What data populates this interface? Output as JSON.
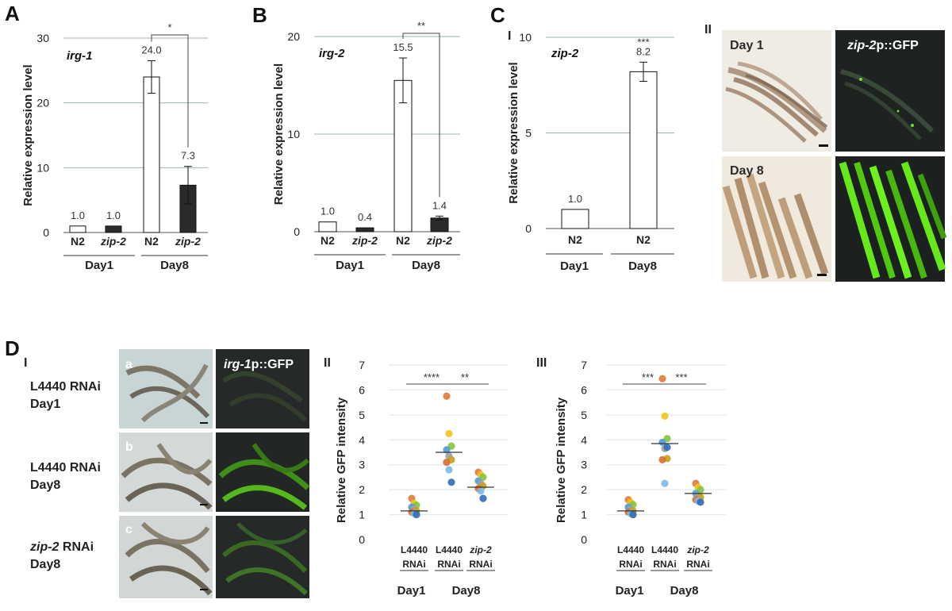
{
  "panels": {
    "A": "A",
    "B": "B",
    "C": "C",
    "D": "D",
    "C_sub1": "I",
    "C_sub2": "II",
    "D_sub1": "I",
    "D_sub2": "II",
    "D_sub3": "III"
  },
  "colors": {
    "white_bar": "#ffffff",
    "dark_bar": "#2b2b2b",
    "grid": "#9fb3b3",
    "gfp_green": "#55e000",
    "micro_dark": "#1f2322"
  },
  "micrographs": {
    "C": {
      "day1_label": "Day 1",
      "day8_label": "Day 8",
      "gfp_label_italic": "zip-2",
      "gfp_label_rest": "p::GFP"
    },
    "D": {
      "letters": [
        "a",
        "b",
        "c"
      ],
      "gfp_label_italic": "irg-1",
      "gfp_label_rest": "p::GFP",
      "rows": [
        {
          "line1_italic": "",
          "line1": "L4440 RNAi",
          "line2": "Day1"
        },
        {
          "line1_italic": "",
          "line1": "L4440 RNAi",
          "line2": "Day8"
        },
        {
          "line1_italic": "zip-2",
          "line1": " RNAi",
          "line2": "Day8"
        }
      ]
    }
  },
  "chart_data": [
    {
      "id": "A",
      "type": "bar",
      "gene": "irg-1",
      "ylabel": "Relative expression level",
      "ylim": [
        0,
        30
      ],
      "yticks": [
        0,
        10,
        20,
        30
      ],
      "grid": true,
      "categories": [
        "N2",
        "zip-2",
        "N2",
        "zip-2"
      ],
      "categories_italic": [
        false,
        true,
        false,
        true
      ],
      "groups": [
        {
          "label": "Day1",
          "from": 0,
          "to": 1
        },
        {
          "label": "Day8",
          "from": 2,
          "to": 3
        }
      ],
      "values": [
        1.0,
        1.0,
        24.0,
        7.3
      ],
      "value_labels": [
        "1.0",
        "1.0",
        "24.0",
        "7.3"
      ],
      "errors": [
        0,
        0,
        2.5,
        2.9
      ],
      "bar_colors": [
        "white",
        "dark",
        "white",
        "dark"
      ],
      "significance": [
        {
          "from": 2,
          "to": 3,
          "label": "*"
        }
      ]
    },
    {
      "id": "B",
      "type": "bar",
      "gene": "irg-2",
      "ylabel": "Relative expression level",
      "ylim": [
        0,
        20
      ],
      "yticks": [
        0,
        10,
        20
      ],
      "grid": true,
      "categories": [
        "N2",
        "zip-2",
        "N2",
        "zip-2"
      ],
      "categories_italic": [
        false,
        true,
        false,
        true
      ],
      "groups": [
        {
          "label": "Day1",
          "from": 0,
          "to": 1
        },
        {
          "label": "Day8",
          "from": 2,
          "to": 3
        }
      ],
      "values": [
        1.0,
        0.4,
        15.5,
        1.4
      ],
      "value_labels": [
        "1.0",
        "0.4",
        "15.5",
        "1.4"
      ],
      "errors": [
        0,
        0,
        2.3,
        0.2
      ],
      "bar_colors": [
        "white",
        "dark",
        "white",
        "dark"
      ],
      "significance": [
        {
          "from": 2,
          "to": 3,
          "label": "**"
        }
      ]
    },
    {
      "id": "C-I",
      "type": "bar",
      "gene": "zip-2",
      "ylabel": "Relative expression level",
      "ylim": [
        0,
        10
      ],
      "yticks": [
        0,
        5,
        10
      ],
      "grid": true,
      "categories": [
        "N2",
        "N2"
      ],
      "categories_italic": [
        false,
        false
      ],
      "groups": [
        {
          "label": "Day1",
          "from": 0,
          "to": 0
        },
        {
          "label": "Day8",
          "from": 1,
          "to": 1
        }
      ],
      "values": [
        1.0,
        8.2
      ],
      "value_labels": [
        "1.0",
        "8.2"
      ],
      "errors": [
        0,
        0.5
      ],
      "bar_colors": [
        "white",
        "white"
      ],
      "bar_sig": [
        null,
        "***"
      ]
    },
    {
      "id": "D-II",
      "type": "scatter",
      "ylabel": "Relative GFP intensity",
      "ylim": [
        0,
        7
      ],
      "yticks": [
        0,
        1,
        2,
        3,
        4,
        5,
        6,
        7
      ],
      "grid": true,
      "categories": [
        {
          "line1": "L4440",
          "line2": "RNAi",
          "italic": false
        },
        {
          "line1": "L4440",
          "line2": "RNAi",
          "italic": false
        },
        {
          "line1": "zip-2",
          "line2": "RNAi",
          "italic": true
        }
      ],
      "groups": [
        {
          "label": "Day1",
          "from": 0,
          "to": 0
        },
        {
          "label": "Day8",
          "from": 1,
          "to": 2
        }
      ],
      "means": [
        1.15,
        3.5,
        2.1
      ],
      "points": [
        [
          1.65,
          1.45,
          1.38,
          1.3,
          1.22,
          1.15,
          1.1,
          1.05,
          1.0
        ],
        [
          5.75,
          4.25,
          3.75,
          3.6,
          3.35,
          3.2,
          3.1,
          2.8,
          2.3
        ],
        [
          2.7,
          2.6,
          2.5,
          2.35,
          2.25,
          2.15,
          2.05,
          1.95,
          1.65
        ]
      ],
      "significance": [
        {
          "from": 0,
          "to": 1,
          "label": "****"
        },
        {
          "from": 1,
          "to": 2,
          "label": "**"
        }
      ]
    },
    {
      "id": "D-III",
      "type": "scatter",
      "ylabel": "Relative GFP intensity",
      "ylim": [
        0,
        7
      ],
      "yticks": [
        0,
        1,
        2,
        3,
        4,
        5,
        6,
        7
      ],
      "grid": true,
      "categories": [
        {
          "line1": "L4440",
          "line2": "RNAi",
          "italic": false
        },
        {
          "line1": "L4440",
          "line2": "RNAi",
          "italic": false
        },
        {
          "line1": "zip-2",
          "line2": "RNAi",
          "italic": true
        }
      ],
      "groups": [
        {
          "label": "Day1",
          "from": 0,
          "to": 0
        },
        {
          "label": "Day8",
          "from": 1,
          "to": 2
        }
      ],
      "means": [
        1.15,
        3.85,
        1.85
      ],
      "points": [
        [
          1.6,
          1.5,
          1.4,
          1.3,
          1.2,
          1.15,
          1.1,
          1.05,
          1.0
        ],
        [
          6.45,
          4.95,
          4.05,
          3.9,
          3.65,
          3.25,
          3.2,
          2.25,
          3.7
        ],
        [
          2.25,
          2.1,
          2.0,
          1.85,
          1.75,
          1.7,
          1.6,
          1.55,
          1.5
        ]
      ],
      "significance": [
        {
          "from": 0,
          "to": 1,
          "label": "***"
        },
        {
          "from": 1,
          "to": 2,
          "label": "***"
        }
      ]
    }
  ]
}
